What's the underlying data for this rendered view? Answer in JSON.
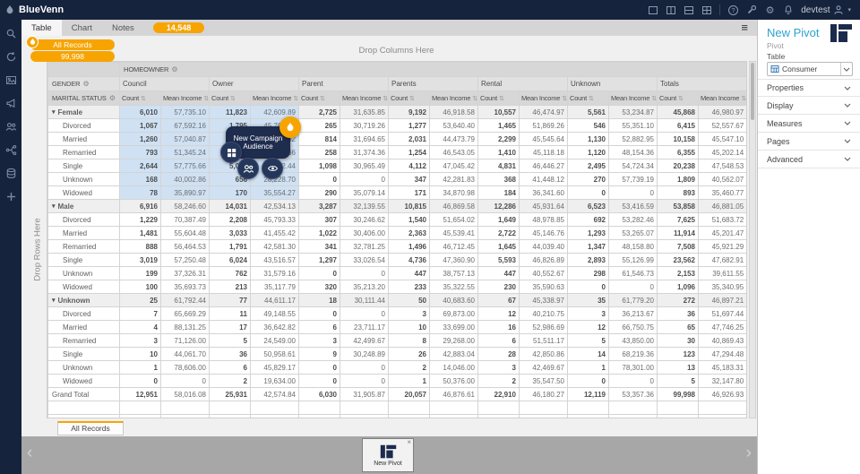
{
  "topbar": {
    "brand": "BlueVenn",
    "user_label": "devtest",
    "window_icons": [
      "window-restore",
      "window-split",
      "window-rows",
      "window-grid"
    ],
    "action_icons": [
      "help",
      "wrench",
      "gear",
      "bell"
    ]
  },
  "sidebar": {
    "icons": [
      "search",
      "sync",
      "image",
      "megaphone",
      "users",
      "journey",
      "database",
      "add"
    ]
  },
  "tabbar": {
    "tabs": [
      "Table",
      "Chart",
      "Notes"
    ],
    "active": "Table",
    "badge": "14,548"
  },
  "audience_chip": {
    "label": "All Records",
    "count": "99,998"
  },
  "drop_zones": {
    "columns": "Drop Columns Here",
    "rows": "Drop Rows Here"
  },
  "glyphs": {
    "gear": "⚙",
    "sort": "⇅",
    "triangle": "▾",
    "caret": "▾",
    "menu": "≡",
    "close": "×",
    "chev_left": "‹",
    "chev_right": "›"
  },
  "pivot": {
    "corner_top": "HOMEOWNER",
    "corner_mid": "GENDER",
    "corner_bottom": "MARITAL STATUS",
    "groups": [
      "Council",
      "Owner",
      "Parent",
      "Parents",
      "Rental",
      "Unknown",
      "Totals"
    ],
    "measures": [
      "Count",
      "Mean Income"
    ],
    "selection": {
      "row_start": 0,
      "row_end": 6,
      "col_start": 0,
      "col_end": 3
    },
    "rows": [
      {
        "label": "Female",
        "type": "group",
        "cells": [
          "6,010",
          "57,735.10",
          "11,823",
          "42,609.89",
          "2,725",
          "31,635.85",
          "9,192",
          "46,918.58",
          "10,557",
          "46,474.97",
          "5,561",
          "53,234.87",
          "45,868",
          "46,980.97"
        ]
      },
      {
        "label": "Divorced",
        "type": "child",
        "cells": [
          "1,067",
          "67,592.16",
          "1,795",
          "45,763.33",
          "265",
          "30,719.26",
          "1,277",
          "53,640.40",
          "1,465",
          "51,869.26",
          "546",
          "55,351.10",
          "6,415",
          "52,557.67"
        ]
      },
      {
        "label": "Married",
        "type": "child",
        "cells": [
          "1,260",
          "57,040.87",
          "2,624",
          "41,507.52",
          "814",
          "31,694.65",
          "2,031",
          "44,473.79",
          "2,299",
          "45,545.64",
          "1,130",
          "52,882.95",
          "10,158",
          "45,547.10"
        ]
      },
      {
        "label": "Remarried",
        "type": "child",
        "cells": [
          "793",
          "51,345.24",
          "1,520",
          "42,318.66",
          "258",
          "31,374.36",
          "1,254",
          "46,543.05",
          "1,410",
          "45,118.18",
          "1,120",
          "48,154.36",
          "6,355",
          "45,202.14"
        ]
      },
      {
        "label": "Single",
        "type": "child",
        "cells": [
          "2,644",
          "57,775.66",
          "5,058",
          "43,212.44",
          "1,098",
          "30,965.49",
          "4,112",
          "47,045.42",
          "4,831",
          "46,446.27",
          "2,495",
          "54,724.34",
          "20,238",
          "47,548.53"
        ]
      },
      {
        "label": "Unknown",
        "type": "child",
        "cells": [
          "168",
          "40,002.86",
          "656",
          "28,228.70",
          "0",
          "0",
          "347",
          "42,281.83",
          "368",
          "41,448.12",
          "270",
          "57,739.19",
          "1,809",
          "40,562.07"
        ]
      },
      {
        "label": "Widowed",
        "type": "child",
        "cells": [
          "78",
          "35,890.97",
          "170",
          "35,554.27",
          "290",
          "35,079.14",
          "171",
          "34,870.98",
          "184",
          "36,341.60",
          "0",
          "0",
          "893",
          "35,460.77"
        ]
      },
      {
        "label": "Male",
        "type": "group",
        "cells": [
          "6,916",
          "58,246.60",
          "14,031",
          "42,534.13",
          "3,287",
          "32,139.55",
          "10,815",
          "46,869.58",
          "12,286",
          "45,931.64",
          "6,523",
          "53,416.59",
          "53,858",
          "46,881.05"
        ]
      },
      {
        "label": "Divorced",
        "type": "child",
        "cells": [
          "1,229",
          "70,387.49",
          "2,208",
          "45,793.33",
          "307",
          "30,246.62",
          "1,540",
          "51,654.02",
          "1,649",
          "48,978.85",
          "692",
          "53,282.46",
          "7,625",
          "51,683.72"
        ]
      },
      {
        "label": "Married",
        "type": "child",
        "cells": [
          "1,481",
          "55,604.48",
          "3,033",
          "41,455.42",
          "1,022",
          "30,406.00",
          "2,363",
          "45,539.41",
          "2,722",
          "45,146.76",
          "1,293",
          "53,265.07",
          "11,914",
          "45,201.47"
        ]
      },
      {
        "label": "Remarried",
        "type": "child",
        "cells": [
          "888",
          "56,464.53",
          "1,791",
          "42,581.30",
          "341",
          "32,781.25",
          "1,496",
          "46,712.45",
          "1,645",
          "44,039.40",
          "1,347",
          "48,158.80",
          "7,508",
          "45,921.29"
        ]
      },
      {
        "label": "Single",
        "type": "child",
        "cells": [
          "3,019",
          "57,250.48",
          "6,024",
          "43,516.57",
          "1,297",
          "33,026.54",
          "4,736",
          "47,360.90",
          "5,593",
          "46,826.89",
          "2,893",
          "55,126.99",
          "23,562",
          "47,682.91"
        ]
      },
      {
        "label": "Unknown",
        "type": "child",
        "cells": [
          "199",
          "37,326.31",
          "762",
          "31,579.16",
          "0",
          "0",
          "447",
          "38,757.13",
          "447",
          "40,552.67",
          "298",
          "61,546.73",
          "2,153",
          "39,611.55"
        ]
      },
      {
        "label": "Widowed",
        "type": "child",
        "cells": [
          "100",
          "35,693.73",
          "213",
          "35,117.79",
          "320",
          "35,213.20",
          "233",
          "35,322.55",
          "230",
          "35,590.63",
          "0",
          "0",
          "1,096",
          "35,340.95"
        ]
      },
      {
        "label": "Unknown",
        "type": "group",
        "cells": [
          "25",
          "61,792.44",
          "77",
          "44,611.17",
          "18",
          "30,111.44",
          "50",
          "40,683.60",
          "67",
          "45,338.97",
          "35",
          "61,779.20",
          "272",
          "46,897.21"
        ]
      },
      {
        "label": "Divorced",
        "type": "child",
        "cells": [
          "7",
          "65,669.29",
          "11",
          "49,148.55",
          "0",
          "0",
          "3",
          "69,873.00",
          "12",
          "40,210.75",
          "3",
          "36,213.67",
          "36",
          "51,697.44"
        ]
      },
      {
        "label": "Married",
        "type": "child",
        "cells": [
          "4",
          "88,131.25",
          "17",
          "36,642.82",
          "6",
          "23,711.17",
          "10",
          "33,699.00",
          "16",
          "52,986.69",
          "12",
          "66,750.75",
          "65",
          "47,746.25"
        ]
      },
      {
        "label": "Remarried",
        "type": "child",
        "cells": [
          "3",
          "71,126.00",
          "5",
          "24,549.00",
          "3",
          "42,499.67",
          "8",
          "29,268.00",
          "6",
          "51,511.17",
          "5",
          "43,850.00",
          "30",
          "40,869.43"
        ]
      },
      {
        "label": "Single",
        "type": "child",
        "cells": [
          "10",
          "44,061.70",
          "36",
          "50,958.61",
          "9",
          "30,248.89",
          "26",
          "42,883.04",
          "28",
          "42,850.86",
          "14",
          "68,219.36",
          "123",
          "47,294.48"
        ]
      },
      {
        "label": "Unknown",
        "type": "child",
        "cells": [
          "1",
          "78,606.00",
          "6",
          "45,829.17",
          "0",
          "0",
          "2",
          "14,046.00",
          "3",
          "42,469.67",
          "1",
          "78,301.00",
          "13",
          "45,183.31"
        ]
      },
      {
        "label": "Widowed",
        "type": "child",
        "cells": [
          "0",
          "0",
          "2",
          "19,634.00",
          "0",
          "0",
          "1",
          "50,376.00",
          "2",
          "35,547.50",
          "0",
          "0",
          "5",
          "32,147.80"
        ]
      },
      {
        "label": "Grand Total",
        "type": "total",
        "cells": [
          "12,951",
          "58,016.08",
          "25,931",
          "42,574.84",
          "6,030",
          "31,905.87",
          "20,057",
          "46,876.61",
          "22,910",
          "46,180.27",
          "12,119",
          "53,357.36",
          "99,998",
          "46,926.93"
        ]
      }
    ]
  },
  "sheet_tab": "All Records",
  "overlay": {
    "title": "New Campaign Audience",
    "line1": "New Campaign",
    "line2": "Audience",
    "icons": [
      "flame",
      "grid",
      "users",
      "eye"
    ]
  },
  "dock": {
    "card_label": "New Pivot"
  },
  "panel": {
    "title": "New Pivot",
    "subtitle": "Pivot",
    "table_label": "Table",
    "table_value": "Consumer",
    "sections": [
      "Properties",
      "Display",
      "Measures",
      "Pages",
      "Advanced"
    ]
  },
  "colors": {
    "accent_orange": "#f7a400",
    "navy": "#16233c",
    "title_blue": "#2ba3d4",
    "selection_blue": "#cfe1f3"
  }
}
